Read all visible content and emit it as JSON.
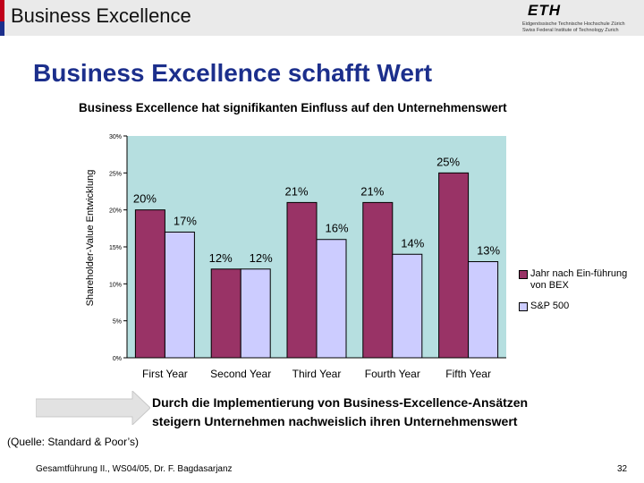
{
  "header": {
    "title": "Business Excellence",
    "logo": {
      "word": "ETH",
      "line1": "Eidgenössische Technische Hochschule Zürich",
      "line2": "Swiss Federal Institute of Technology Zurich"
    }
  },
  "slide": {
    "title": "Business Excellence schafft Wert",
    "subtitle": "Business Excellence hat signifikanten Einfluss auf den Unternehmenswert",
    "conclusion_line1": "Durch die Implementierung von Business-Excellence-Ansätzen",
    "conclusion_line2": "steigern Unternehmen nachweislich ihren Unternehmenswert",
    "source": "(Quelle: Standard & Poor’s)"
  },
  "footer": {
    "text": "Gesamtführung II., WS04/05, Dr. F. Bagdasarjanz",
    "page": "32"
  },
  "colors": {
    "accent_red": "#c0001a",
    "accent_blue": "#1c2f8c",
    "plot_bg": "#b6dfe0",
    "series1": "#993366",
    "series2": "#ccccff"
  },
  "chart_data": {
    "type": "bar",
    "categories": [
      "First Year",
      "Second Year",
      "Third Year",
      "Fourth Year",
      "Fifth Year"
    ],
    "series": [
      {
        "name": "Jahr nach Ein-führung von BEX",
        "values": [
          20,
          12,
          21,
          21,
          25
        ],
        "labels": [
          "20%",
          "12%",
          "21%",
          "21%",
          "25%"
        ]
      },
      {
        "name": "S&P 500",
        "values": [
          17,
          12,
          16,
          14,
          13
        ],
        "labels": [
          "17%",
          "12%",
          "16%",
          "14%",
          "13%"
        ]
      }
    ],
    "ylabel": "Shareholder-Value Entwicklung",
    "ylim": [
      0,
      30
    ],
    "yticks": [
      0,
      5,
      10,
      15,
      20,
      25,
      30
    ],
    "ytick_labels": [
      "0%",
      "5%",
      "10%",
      "15%",
      "20%",
      "25%",
      "30%"
    ],
    "legend_position": "right",
    "grid": false
  }
}
